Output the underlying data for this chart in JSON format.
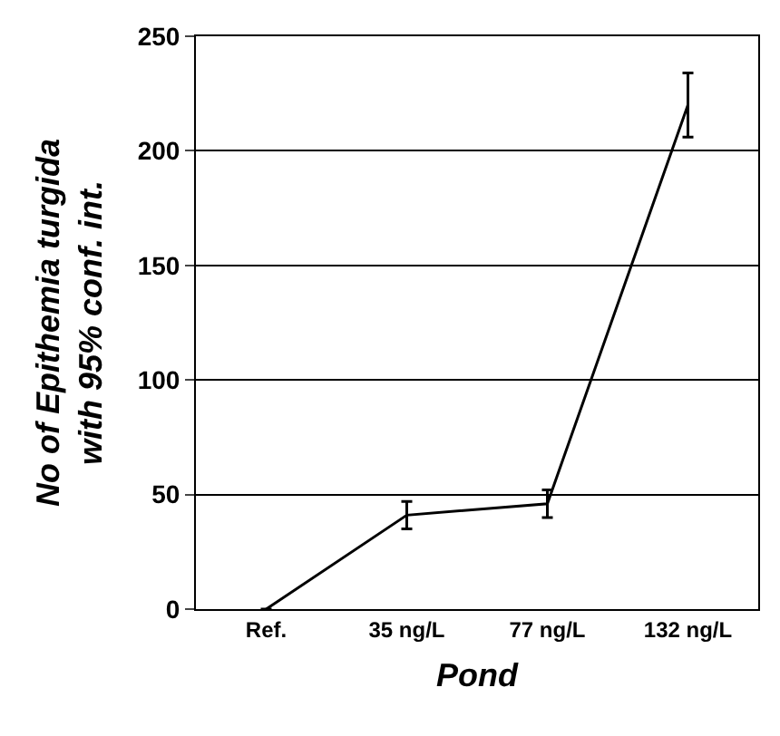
{
  "chart_data": {
    "type": "line",
    "xlabel": "Pond",
    "ylabel": "No of Epithemia turgida\nwith 95% conf. int.",
    "categories": [
      "Ref.",
      "35 ng/L",
      "77 ng/L",
      "132 ng/L"
    ],
    "series": [
      {
        "color": "#000000",
        "values": [
          0,
          41,
          46,
          220
        ],
        "errors": [
          null,
          6,
          6,
          14
        ]
      }
    ],
    "ylim": [
      0,
      250
    ],
    "yticks": [
      0,
      50,
      100,
      150,
      200,
      250
    ],
    "grid": "y",
    "marker": "none",
    "line_style": "solid"
  }
}
